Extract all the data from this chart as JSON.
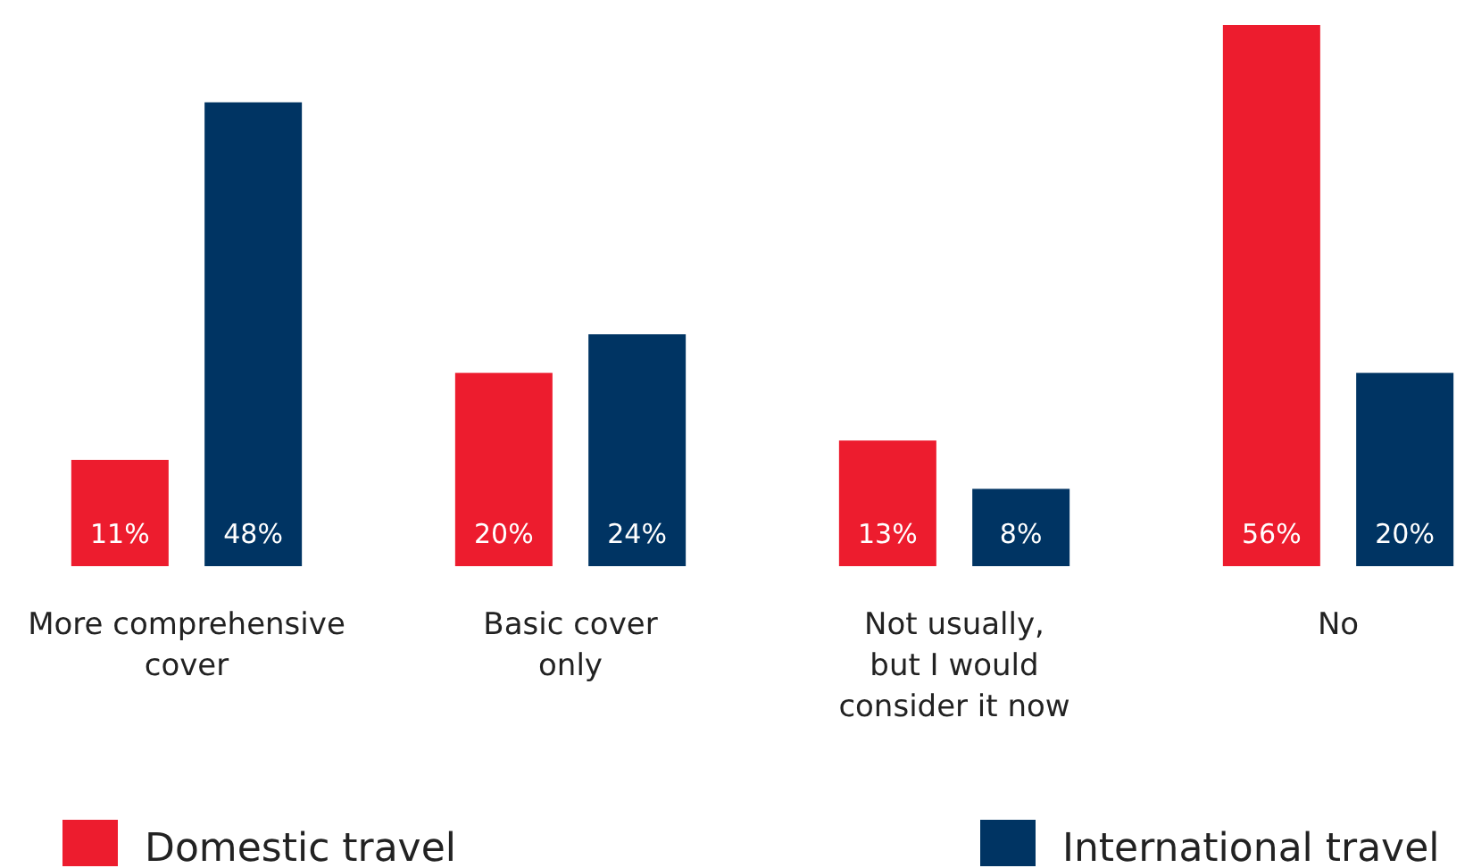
{
  "chart_data": {
    "type": "bar",
    "categories": [
      "More comprehensive cover",
      "Basic cover only",
      "Not usually, but I would consider it now",
      "No"
    ],
    "series": [
      {
        "name": "Domestic travel",
        "color": "#ed1c2e",
        "values": [
          11,
          20,
          13,
          56
        ],
        "value_labels": [
          "11%",
          "20%",
          "13%",
          "56%"
        ]
      },
      {
        "name": "International travel",
        "color": "#003463",
        "values": [
          48,
          24,
          8,
          20
        ],
        "value_labels": [
          "48%",
          "24%",
          "8%",
          "20%"
        ]
      }
    ],
    "legend": "bottom"
  }
}
